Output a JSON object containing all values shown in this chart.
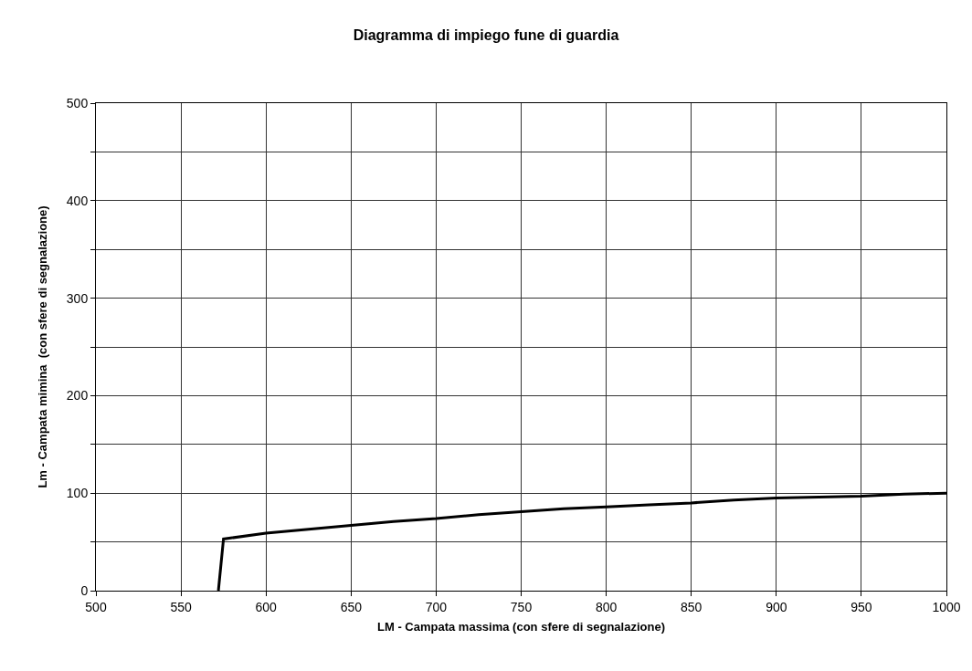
{
  "chart_data": {
    "type": "line",
    "title": "Diagramma di impiego fune di guardia",
    "xlabel": "LM - Campata massima (con sfere di segnalazione)",
    "ylabel": "Lm - Campata mimina  (con sfere di segnalazione)",
    "x": [
      572,
      575,
      600,
      625,
      650,
      675,
      700,
      725,
      750,
      775,
      800,
      825,
      850,
      875,
      900,
      925,
      950,
      975,
      1000
    ],
    "series": [
      {
        "color": "#000000",
        "values": [
          0,
          53,
          59,
          63,
          67,
          71,
          74,
          78,
          81,
          84,
          86,
          88,
          90,
          93,
          95,
          96,
          97,
          99,
          100
        ]
      }
    ],
    "xlim": [
      500,
      1000
    ],
    "xticks": [
      500,
      550,
      600,
      650,
      700,
      750,
      800,
      850,
      900,
      950,
      1000
    ],
    "ylim": [
      0,
      500
    ],
    "yticks": [
      0,
      {
        "value": 50,
        "label": null
      },
      100,
      {
        "value": 150,
        "label": null
      },
      200,
      {
        "value": 250,
        "label": null
      },
      300,
      {
        "value": 350,
        "label": null
      },
      400,
      {
        "value": 450,
        "label": null
      },
      500
    ],
    "grid": true,
    "marker": "none",
    "line_style": "solid"
  }
}
